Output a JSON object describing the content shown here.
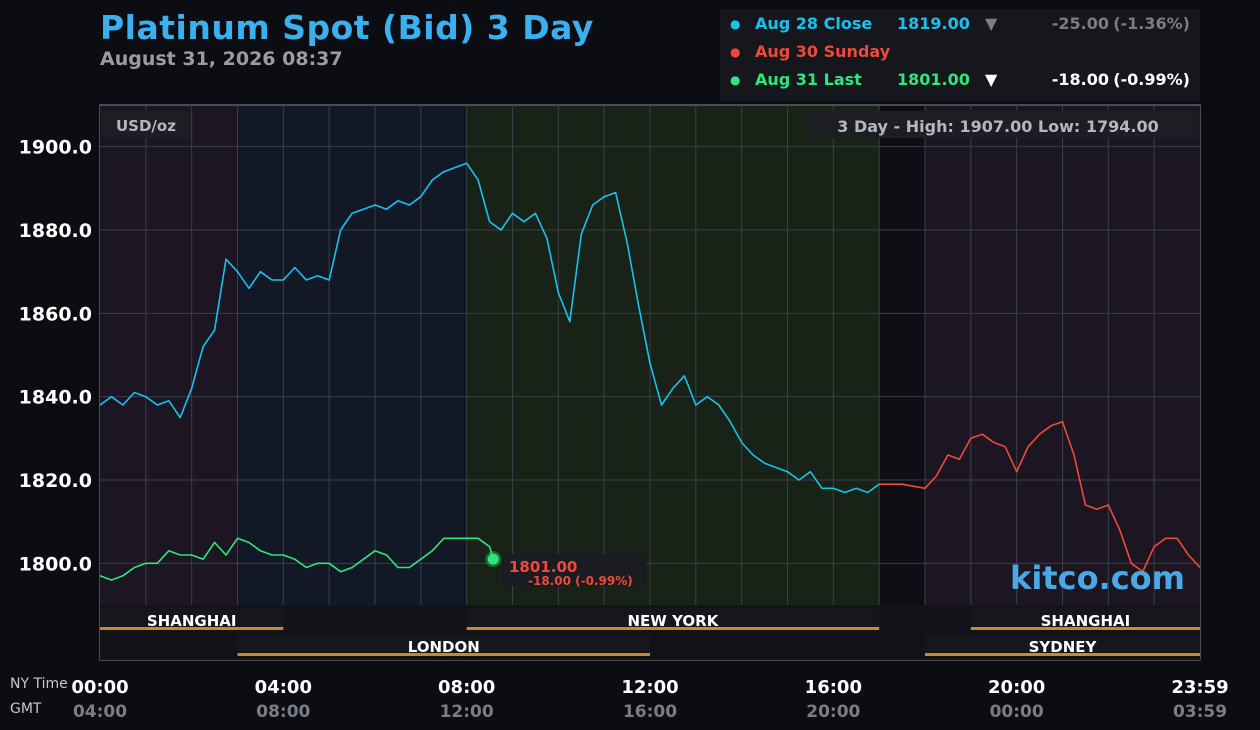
{
  "header": {
    "title": "Platinum Spot (Bid) 3 Day",
    "subtitle": "August 31, 2026 08:37"
  },
  "legend": [
    {
      "label": "Aug 28 Close",
      "value": "1819.00",
      "arrow": "▼",
      "change": "-25.00",
      "pct": "(-1.36%)",
      "color": "#19c2ee",
      "dim": true
    },
    {
      "label": "Aug 30 Sunday",
      "value": "",
      "arrow": "",
      "change": "",
      "pct": "",
      "color": "#f0493a",
      "dim": false
    },
    {
      "label": "Aug 31 Last",
      "value": "1801.00",
      "arrow": "▼",
      "change": "-18.00",
      "pct": "(-0.99%)",
      "color": "#2ee679",
      "dim": false
    }
  ],
  "units_label": "USD/oz",
  "range_label": "3 Day - High: 1907.00  Low: 1794.00",
  "watermark": "kitco.com",
  "last_callout": {
    "price": "1801.00",
    "change": "-18.00 (-0.99%)"
  },
  "axis_titles": {
    "ny": "NY Time",
    "gmt": "GMT"
  },
  "x_ticks": [
    {
      "hour": 0,
      "ny": "00:00",
      "gmt": "04:00"
    },
    {
      "hour": 4,
      "ny": "04:00",
      "gmt": "08:00"
    },
    {
      "hour": 8,
      "ny": "08:00",
      "gmt": "12:00"
    },
    {
      "hour": 12,
      "ny": "12:00",
      "gmt": "16:00"
    },
    {
      "hour": 16,
      "ny": "16:00",
      "gmt": "20:00"
    },
    {
      "hour": 20,
      "ny": "20:00",
      "gmt": "00:00"
    },
    {
      "hour": 24,
      "ny": "23:59",
      "gmt": "03:59"
    }
  ],
  "sessions": [
    {
      "name": "SHANGHAI",
      "start": 0,
      "end": 4,
      "row": 1
    },
    {
      "name": "NEW YORK",
      "start": 8,
      "end": 17,
      "row": 1
    },
    {
      "name": "SHANGHAI",
      "start": 19,
      "end": 24,
      "row": 1
    },
    {
      "name": "LONDON",
      "start": 3,
      "end": 12,
      "row": 2
    },
    {
      "name": "SYDNEY",
      "start": 18,
      "end": 24,
      "row": 2
    }
  ],
  "colors": {
    "aug28": "#19c2ee",
    "aug30": "#f0493a",
    "aug31": "#2ee679",
    "session_bar": "#c38a2e",
    "grid": "#3b3f4a"
  },
  "chart_data": {
    "type": "line",
    "title": "Platinum Spot (Bid) 3 Day",
    "subtitle": "August 31, 2026 08:37",
    "xlabel": "NY Time",
    "ylabel": "USD/oz",
    "x_unit": "hours (NY time)",
    "xlim": [
      0,
      24
    ],
    "ylim": [
      1790,
      1910
    ],
    "yticks": [
      1800,
      1820,
      1840,
      1860,
      1880,
      1900
    ],
    "grid": true,
    "high": 1907.0,
    "low": 1794.0,
    "series": [
      {
        "name": "Aug 28 Close",
        "x": [
          0,
          0.25,
          0.5,
          0.75,
          1.0,
          1.25,
          1.5,
          1.75,
          2.0,
          2.25,
          2.5,
          2.75,
          3.0,
          3.25,
          3.5,
          3.75,
          4.0,
          4.25,
          4.5,
          4.75,
          5.0,
          5.25,
          5.5,
          5.75,
          6.0,
          6.25,
          6.5,
          6.75,
          7.0,
          7.25,
          7.5,
          7.75,
          8.0,
          8.25,
          8.5,
          8.75,
          9.0,
          9.25,
          9.5,
          9.75,
          10.0,
          10.25,
          10.5,
          10.75,
          11.0,
          11.25,
          11.5,
          11.75,
          12.0,
          12.25,
          12.5,
          12.75,
          13.0,
          13.25,
          13.5,
          13.75,
          14.0,
          14.25,
          14.5,
          14.75,
          15.0,
          15.25,
          15.5,
          15.75,
          16.0,
          16.25,
          16.5,
          16.75,
          17.0
        ],
        "y": [
          1838,
          1840,
          1838,
          1841,
          1840,
          1838,
          1839,
          1835,
          1842,
          1852,
          1856,
          1873,
          1870,
          1866,
          1870,
          1868,
          1868,
          1871,
          1868,
          1869,
          1868,
          1880,
          1884,
          1885,
          1886,
          1885,
          1887,
          1886,
          1888,
          1892,
          1894,
          1895,
          1896,
          1892,
          1882,
          1880,
          1884,
          1882,
          1884,
          1878,
          1865,
          1858,
          1879,
          1886,
          1888,
          1889,
          1877,
          1862,
          1848,
          1838,
          1842,
          1845,
          1838,
          1840,
          1838,
          1834,
          1829,
          1826,
          1824,
          1823,
          1822,
          1820,
          1822,
          1818,
          1818,
          1817,
          1818,
          1817,
          1819
        ]
      },
      {
        "name": "Aug 30 Sunday",
        "x": [
          17.0,
          17.5,
          18.0,
          18.25,
          18.5,
          18.75,
          19.0,
          19.25,
          19.5,
          19.75,
          20.0,
          20.25,
          20.5,
          20.75,
          21.0,
          21.25,
          21.5,
          21.75,
          22.0,
          22.25,
          22.5,
          22.75,
          23.0,
          23.25,
          23.5,
          23.75,
          24.0
        ],
        "y": [
          1819,
          1819,
          1818,
          1821,
          1826,
          1825,
          1830,
          1831,
          1829,
          1828,
          1822,
          1828,
          1831,
          1833,
          1834,
          1826,
          1814,
          1813,
          1814,
          1808,
          1800,
          1798,
          1804,
          1806,
          1806,
          1802,
          1799
        ]
      },
      {
        "name": "Aug 31 Last",
        "x": [
          0,
          0.25,
          0.5,
          0.75,
          1.0,
          1.25,
          1.5,
          1.75,
          2.0,
          2.25,
          2.5,
          2.75,
          3.0,
          3.25,
          3.5,
          3.75,
          4.0,
          4.25,
          4.5,
          4.75,
          5.0,
          5.25,
          5.5,
          5.75,
          6.0,
          6.25,
          6.5,
          6.75,
          7.0,
          7.25,
          7.5,
          7.75,
          8.0,
          8.25,
          8.5,
          8.58
        ],
        "y": [
          1797,
          1796,
          1797,
          1799,
          1800,
          1800,
          1803,
          1802,
          1802,
          1801,
          1805,
          1802,
          1806,
          1805,
          1803,
          1802,
          1802,
          1801,
          1799,
          1800,
          1800,
          1798,
          1799,
          1801,
          1803,
          1802,
          1799,
          1799,
          1801,
          1803,
          1806,
          1806,
          1806,
          1806,
          1804,
          1801
        ]
      }
    ]
  }
}
